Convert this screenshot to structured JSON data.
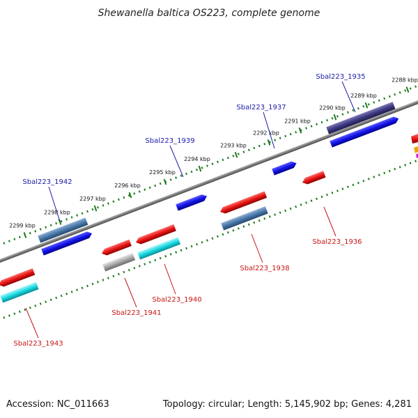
{
  "title": "Shewanella baltica OS223, complete genome",
  "accession": "Accession: NC_011663",
  "stats": "Topology: circular; Length: 5,145,902 bp; Genes: 4,281",
  "ticks": [
    {
      "label": "2288 kbp"
    },
    {
      "label": "2289 kbp"
    },
    {
      "label": "2290 kbp"
    },
    {
      "label": "2291 kbp"
    },
    {
      "label": "2292 kbp"
    },
    {
      "label": "2293 kbp"
    },
    {
      "label": "2294 kbp"
    },
    {
      "label": "2295 kbp"
    },
    {
      "label": "2296 kbp"
    },
    {
      "label": "2297 kbp"
    },
    {
      "label": "2298 kbp"
    },
    {
      "label": "2299 kbp"
    }
  ],
  "genes": [
    {
      "label": "Sbal223_1935",
      "strand": "forward"
    },
    {
      "label": "Sbal223_1936",
      "strand": "reverse"
    },
    {
      "label": "Sbal223_1937",
      "strand": "forward"
    },
    {
      "label": "Sbal223_1938",
      "strand": "reverse"
    },
    {
      "label": "Sbal223_1939",
      "strand": "forward"
    },
    {
      "label": "Sbal223_1940",
      "strand": "reverse"
    },
    {
      "label": "Sbal223_1941",
      "strand": "reverse"
    },
    {
      "label": "Sbal223_1942",
      "strand": "forward"
    },
    {
      "label": "Sbal223_1943",
      "strand": "reverse"
    }
  ],
  "colors": {
    "background": "#ffffff",
    "backbone": "#7a7a7a",
    "dotted_track": "#1f7a1f",
    "forward_cds": "#1414e6",
    "reverse_cds": "#e61414",
    "cyan_feature": "#19d8e0",
    "steel_feature": "#4a78a8",
    "purple_feature": "#3f3a82",
    "gray_feature": "#a8a8a8",
    "label_blue": "#1a1aa8",
    "label_red": "#c81414"
  }
}
